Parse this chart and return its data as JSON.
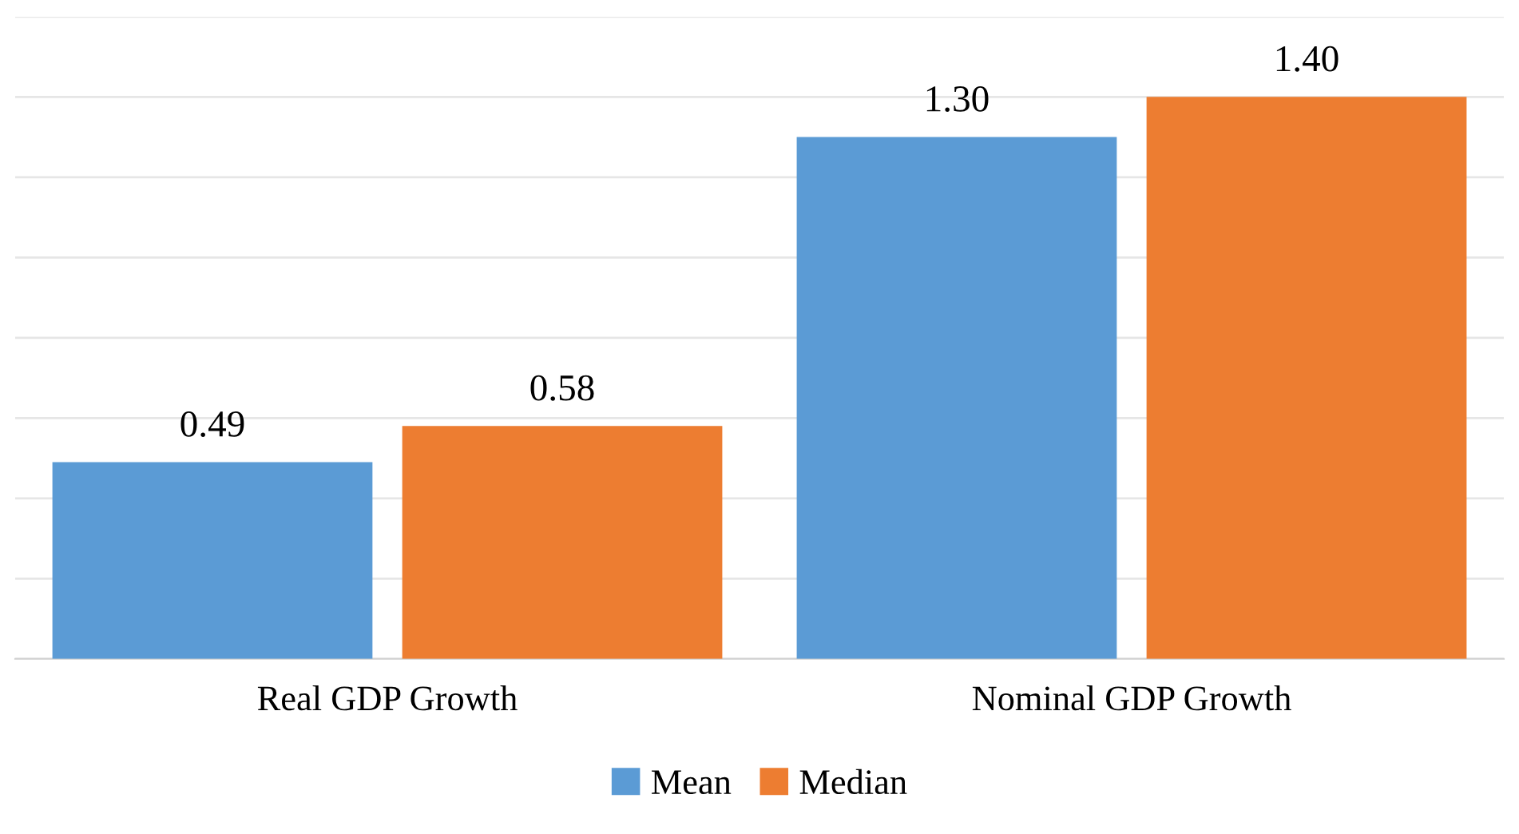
{
  "chart_data": {
    "type": "bar",
    "categories": [
      "Real GDP Growth",
      "Nominal GDP Growth"
    ],
    "series": [
      {
        "name": "Mean",
        "color": "#5b9bd5",
        "values": [
          0.49,
          1.3
        ],
        "value_labels": [
          "0.49",
          "1.30"
        ]
      },
      {
        "name": "Median",
        "color": "#ed7d31",
        "values": [
          0.58,
          1.4
        ],
        "value_labels": [
          "0.58",
          "1.40"
        ]
      }
    ],
    "ylim": [
      0,
      1.6
    ],
    "yticks": [
      {
        "value": 0,
        "label": null
      },
      {
        "value": 0.2,
        "label": null
      },
      {
        "value": 0.4,
        "label": null
      },
      {
        "value": 0.6,
        "label": null
      },
      {
        "value": 0.8,
        "label": null
      },
      {
        "value": 1.0,
        "label": null
      },
      {
        "value": 1.2,
        "label": null
      },
      {
        "value": 1.4,
        "label": null
      },
      {
        "value": 1.6,
        "label": null
      }
    ],
    "tick_labels": "x",
    "grid": "y",
    "legend": "bottom"
  }
}
